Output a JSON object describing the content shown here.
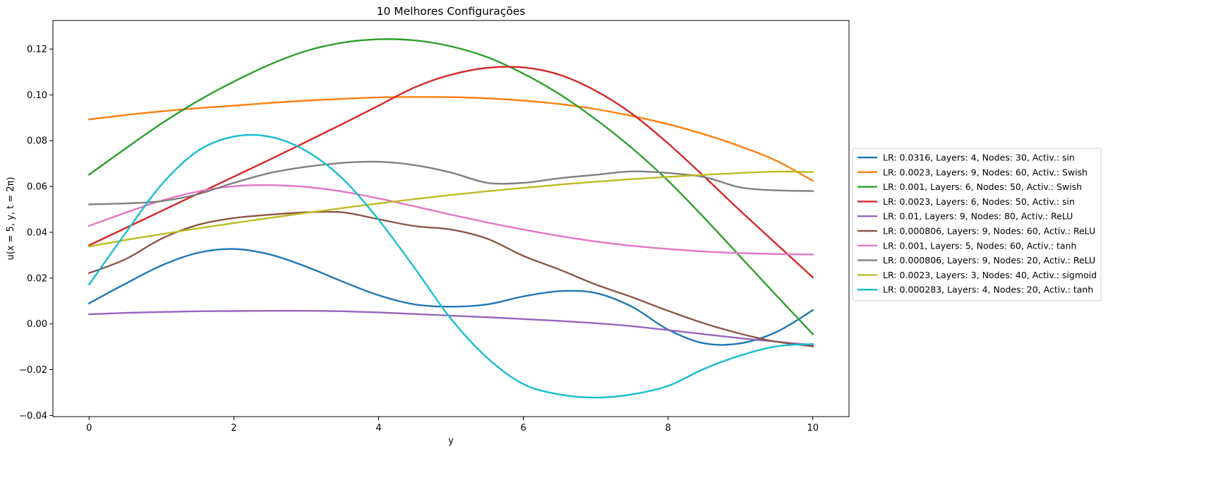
{
  "chart_data": {
    "type": "line",
    "title": "10 Melhores Configurações",
    "xlabel": "y",
    "ylabel": "u(x = 5, y, t = 2π)",
    "xlim": [
      -0.5,
      10.5
    ],
    "ylim": [
      -0.0405,
      0.1325
    ],
    "xticks": [
      0,
      2,
      4,
      6,
      8,
      10
    ],
    "xtick_labels": [
      "0",
      "2",
      "4",
      "6",
      "8",
      "10"
    ],
    "yticks": [
      -0.04,
      -0.02,
      0.0,
      0.02,
      0.04,
      0.06,
      0.08,
      0.1,
      0.12
    ],
    "ytick_labels": [
      "−0.04",
      "−0.02",
      "0.00",
      "0.02",
      "0.04",
      "0.06",
      "0.08",
      "0.10",
      "0.12"
    ],
    "grid": false,
    "legend_position": "outside-right",
    "x": [
      0,
      0.5,
      1,
      1.5,
      2,
      2.5,
      3,
      3.5,
      4,
      4.5,
      5,
      5.5,
      6,
      6.5,
      7,
      7.5,
      8,
      8.5,
      9,
      9.5,
      10
    ],
    "series": [
      {
        "name": "LR: 0.0316, Layers: 4, Nodes: 30, Activ.: sin",
        "color": "#1f77b4",
        "values": [
          0.009,
          0.0175,
          0.0255,
          0.031,
          0.0327,
          0.0303,
          0.025,
          0.0185,
          0.0125,
          0.0085,
          0.0075,
          0.0085,
          0.012,
          0.0143,
          0.0135,
          0.0075,
          -0.0025,
          -0.0085,
          -0.0085,
          -0.0035,
          0.006
        ]
      },
      {
        "name": "LR: 0.0023, Layers: 9, Nodes: 60, Activ.: Swish",
        "color": "#ff7f0e",
        "values": [
          0.0893,
          0.0912,
          0.0928,
          0.0942,
          0.0953,
          0.0965,
          0.0975,
          0.0983,
          0.0989,
          0.0991,
          0.099,
          0.0985,
          0.0975,
          0.096,
          0.0938,
          0.0908,
          0.0872,
          0.0828,
          0.0775,
          0.0712,
          0.0625
        ]
      },
      {
        "name": "LR: 0.001, Layers: 6, Nodes: 50, Activ.: Swish",
        "color": "#2ca02c",
        "values": [
          0.0652,
          0.0765,
          0.0875,
          0.0973,
          0.1058,
          0.1133,
          0.1192,
          0.1228,
          0.1243,
          0.1238,
          0.1212,
          0.1165,
          0.1093,
          0.1003,
          0.0893,
          0.0768,
          0.0625,
          0.0463,
          0.0293,
          0.0123,
          -0.0045
        ]
      },
      {
        "name": "LR: 0.0023, Layers: 6, Nodes: 50, Activ.: sin",
        "color": "#d62728",
        "values": [
          0.0343,
          0.0418,
          0.0493,
          0.0568,
          0.0643,
          0.0718,
          0.0795,
          0.0873,
          0.0953,
          0.1033,
          0.1088,
          0.1118,
          0.112,
          0.1088,
          0.1018,
          0.0918,
          0.0788,
          0.0643,
          0.0493,
          0.0348,
          0.0203
        ]
      },
      {
        "name": "LR: 0.01, Layers: 9, Nodes: 80, Activ.: ReLU",
        "color": "#9467bd",
        "values": [
          0.0042,
          0.0048,
          0.0052,
          0.0055,
          0.0056,
          0.0057,
          0.0057,
          0.0055,
          0.005,
          0.0043,
          0.0036,
          0.0029,
          0.0021,
          0.0013,
          0.0003,
          -0.001,
          -0.0027,
          -0.0045,
          -0.0063,
          -0.0078,
          -0.0092
        ]
      },
      {
        "name": "LR: 0.000806, Layers: 9, Nodes: 60, Activ.: ReLU",
        "color": "#8c564b",
        "values": [
          0.0222,
          0.0282,
          0.0372,
          0.0432,
          0.0462,
          0.0477,
          0.0487,
          0.0487,
          0.0457,
          0.0427,
          0.0412,
          0.0372,
          0.0297,
          0.0237,
          0.0172,
          0.0117,
          0.0057,
          0.0002,
          -0.0043,
          -0.0078,
          -0.0098
        ]
      },
      {
        "name": "LR: 0.001, Layers: 5, Nodes: 60, Activ.: tanh",
        "color": "#e377c2",
        "values": [
          0.0428,
          0.0485,
          0.0538,
          0.0578,
          0.0601,
          0.0606,
          0.0598,
          0.0578,
          0.0548,
          0.0513,
          0.0477,
          0.0443,
          0.0412,
          0.0384,
          0.036,
          0.0341,
          0.0327,
          0.0316,
          0.0309,
          0.0305,
          0.0303
        ]
      },
      {
        "name": "LR: 0.000806, Layers: 9, Nodes: 20, Activ.: ReLU",
        "color": "#7f7f7f",
        "values": [
          0.0522,
          0.0526,
          0.0536,
          0.0566,
          0.0616,
          0.0659,
          0.0686,
          0.0703,
          0.0708,
          0.0693,
          0.0661,
          0.0616,
          0.0616,
          0.0636,
          0.0651,
          0.0666,
          0.0659,
          0.0641,
          0.0596,
          0.0583,
          0.058
        ]
      },
      {
        "name": "LR: 0.0023, Layers: 3, Nodes: 40, Activ.: sigmoid",
        "color": "#bcbd22",
        "values": [
          0.0338,
          0.0366,
          0.0392,
          0.0417,
          0.044,
          0.0463,
          0.0485,
          0.0506,
          0.0526,
          0.0545,
          0.0563,
          0.0579,
          0.0594,
          0.0608,
          0.0621,
          0.0632,
          0.0642,
          0.0651,
          0.0659,
          0.0665,
          0.0663
        ]
      },
      {
        "name": "LR: 0.000283, Layers: 4, Nodes: 20, Activ.: tanh",
        "color": "#17becf",
        "values": [
          0.0172,
          0.0395,
          0.0608,
          0.0755,
          0.0818,
          0.0817,
          0.0755,
          0.0635,
          0.0455,
          0.0243,
          0.0022,
          -0.0148,
          -0.0263,
          -0.0308,
          -0.0322,
          -0.0308,
          -0.0271,
          -0.0196,
          -0.0138,
          -0.0098,
          -0.0088
        ]
      }
    ]
  }
}
